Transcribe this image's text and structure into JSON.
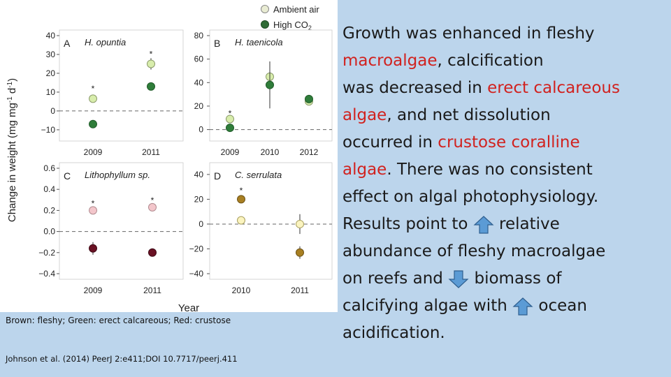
{
  "legend": {
    "ambient": "Ambient air",
    "high_co2": "High CO",
    "high_co2_sub": "2"
  },
  "y_axis_label": "Change in weight (mg mg",
  "y_axis_sup1": "-1",
  "y_axis_mid": " d",
  "y_axis_sup2": "-1",
  "y_axis_end": ")",
  "x_axis_label": "Year",
  "caption": "Brown: fleshy; Green: erect calcareous; Red: crustose",
  "citation": "Johnson et al. (2014)  PeerJ 2:e411;DOI 10.7717/peerj.411",
  "summary": {
    "l1": "Growth was enhanced in fleshy",
    "l2a": "macroalgae",
    "l2b": ", calcification",
    "l3a": "was decreased in ",
    "l3b": "erect calcareous",
    "l4a": "algae",
    "l4b": ", and net dissolution",
    "l5a": "occurred in ",
    "l5b": "crustose coralline",
    "l6a": "algae",
    "l6b": ".  There was no consistent",
    "l7": "effect on algal photophysiology.",
    "l8a": "Results point to ",
    "l8b": " relative",
    "l9": "abundance of fleshy macroalgae",
    "l10a": "on reefs and ",
    "l10b": " biomass of",
    "l11a": "calcifying algae with ",
    "l11b": " ocean",
    "l12": "acidification."
  },
  "colors": {
    "ambient_green": "#d8edac",
    "high_green": "#2f7d3a",
    "ambient_red": "#f3c6cb",
    "high_red": "#6a1124",
    "ambient_brown": "#fbf4bf",
    "high_brown": "#a87f22",
    "red_text": "#d1221f",
    "arrow_fill": "#5b9bd5",
    "arrow_stroke": "#2f5f8f"
  },
  "chart_data": [
    {
      "type": "scatter",
      "panel": "A",
      "title": "H. opuntia",
      "categories": [
        "2009",
        "2011"
      ],
      "ylim": [
        -13,
        40
      ],
      "yticks": [
        -10,
        0,
        10,
        20,
        30,
        40
      ],
      "ref_line": 0,
      "series": [
        {
          "name": "Ambient air",
          "values": [
            6.5,
            25
          ],
          "err": [
            0.5,
            3
          ]
        },
        {
          "name": "High CO2",
          "values": [
            -7,
            13
          ],
          "err": [
            0.5,
            1
          ]
        }
      ],
      "annotations": [
        {
          "category": "2009",
          "value": 12.5,
          "text": "*"
        },
        {
          "category": "2011",
          "value": 31,
          "text": "*"
        }
      ]
    },
    {
      "type": "scatter",
      "panel": "B",
      "title": "H. taenicola",
      "categories": [
        "2009",
        "2010",
        "2012"
      ],
      "ylim": [
        -5,
        80
      ],
      "yticks": [
        0,
        20,
        40,
        60,
        80
      ],
      "ref_line": 0,
      "series": [
        {
          "name": "Ambient air",
          "values": [
            9,
            45,
            24
          ],
          "err": [
            3,
            12,
            2
          ]
        },
        {
          "name": "High CO2",
          "values": [
            1.5,
            38,
            26
          ],
          "err": [
            1,
            20,
            2
          ]
        }
      ],
      "annotations": [
        {
          "category": "2009",
          "value": 15,
          "text": "*"
        }
      ]
    },
    {
      "type": "scatter",
      "panel": "C",
      "title": "Lithophyllum sp.",
      "categories": [
        "2009",
        "2011"
      ],
      "ylim": [
        -0.4,
        0.6
      ],
      "yticks": [
        -0.4,
        -0.2,
        0.0,
        0.2,
        0.4,
        0.6
      ],
      "ref_line": 0,
      "series": [
        {
          "name": "Ambient air",
          "values": [
            0.2,
            0.23
          ],
          "err": [
            0.02,
            0.02
          ]
        },
        {
          "name": "High CO2",
          "values": [
            -0.16,
            -0.2
          ],
          "err": [
            0.06,
            0.02
          ]
        }
      ],
      "annotations": [
        {
          "category": "2009",
          "value": 0.28,
          "text": "*"
        },
        {
          "category": "2011",
          "value": 0.31,
          "text": "*"
        }
      ]
    },
    {
      "type": "scatter",
      "panel": "D",
      "title": "C. serrulata",
      "categories": [
        "2010",
        "2011"
      ],
      "ylim": [
        -40,
        45
      ],
      "yticks": [
        -40,
        -20,
        0,
        20,
        40
      ],
      "ref_line": 0,
      "series": [
        {
          "name": "Ambient air",
          "values": [
            3,
            0
          ],
          "err": [
            2,
            8
          ]
        },
        {
          "name": "High CO2",
          "values": [
            20,
            -23
          ],
          "err": [
            3,
            5
          ]
        }
      ],
      "annotations": [
        {
          "category": "2010",
          "value": 28,
          "text": "*"
        }
      ]
    }
  ]
}
